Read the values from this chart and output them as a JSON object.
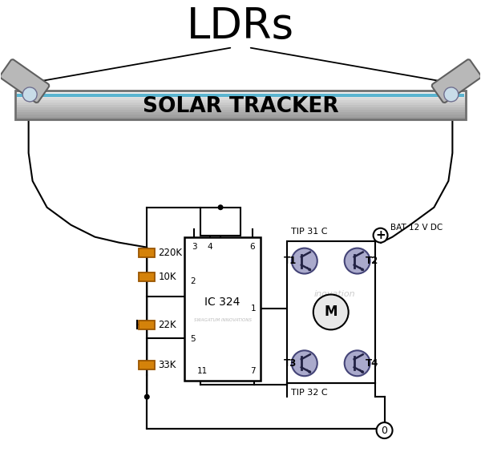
{
  "title": "LDRs",
  "solar_tracker_label": "SOLAR TRACKER",
  "ic_label": "IC 324",
  "motor_label": "M",
  "bat_label": "BAT 12 V DC",
  "tip31_label": "TIP 31 C",
  "tip32_label": "TIP 32 C",
  "swagatum_label": "SWAGATUM INNOVATIONS",
  "resistors": [
    "220K",
    "10K",
    "22K",
    "33K"
  ],
  "background_color": "#ffffff",
  "tracker_stripe": "#5ab4d0",
  "resistor_color": "#d4820a",
  "transistor_fill": "#aaaacc",
  "wire_color": "#000000",
  "ldr_body": "#a8a8a8",
  "ldr_glass": "#c8dce8",
  "ground_symbol": "Ø"
}
